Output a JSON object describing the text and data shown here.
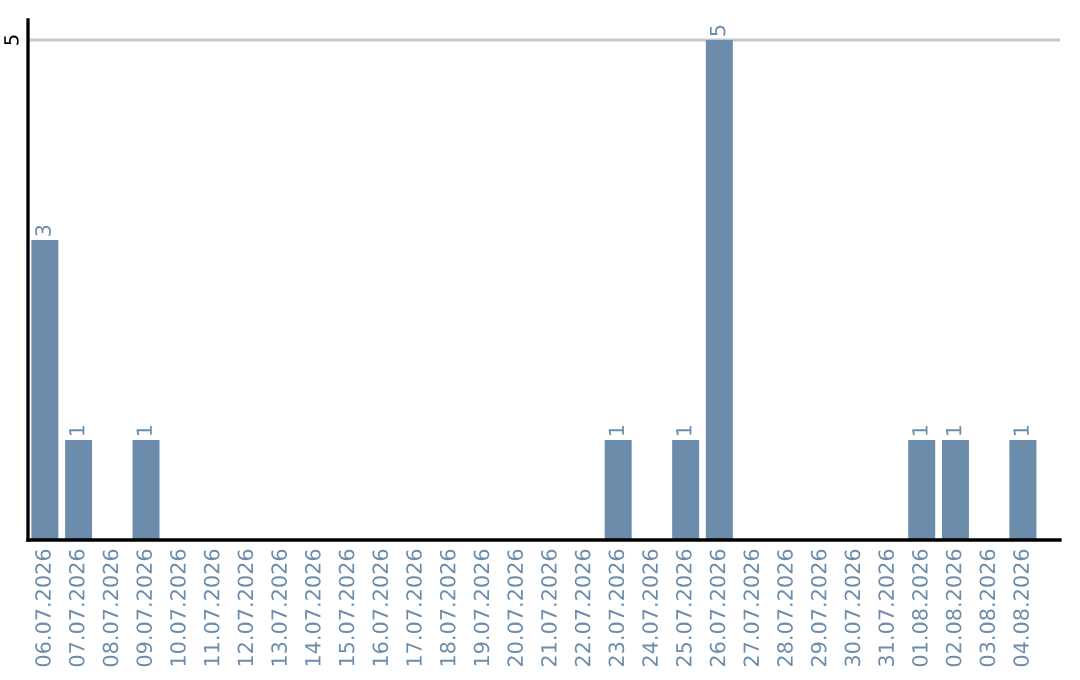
{
  "chart_data": {
    "type": "bar",
    "categories": [
      "06.07.2026",
      "07.07.2026",
      "08.07.2026",
      "09.07.2026",
      "10.07.2026",
      "11.07.2026",
      "12.07.2026",
      "13.07.2026",
      "14.07.2026",
      "15.07.2026",
      "16.07.2026",
      "17.07.2026",
      "18.07.2026",
      "19.07.2026",
      "20.07.2026",
      "21.07.2026",
      "22.07.2026",
      "23.07.2026",
      "24.07.2026",
      "25.07.2026",
      "26.07.2026",
      "27.07.2026",
      "28.07.2026",
      "29.07.2026",
      "30.07.2026",
      "31.07.2026",
      "01.08.2026",
      "02.08.2026",
      "03.08.2026",
      "04.08.2026"
    ],
    "values": [
      3,
      1,
      0,
      1,
      0,
      0,
      0,
      0,
      0,
      0,
      0,
      0,
      0,
      0,
      0,
      0,
      0,
      1,
      0,
      1,
      5,
      0,
      0,
      0,
      0,
      0,
      1,
      1,
      0,
      1
    ],
    "value_labels": [
      "3",
      "1",
      null,
      "1",
      null,
      null,
      null,
      null,
      null,
      null,
      null,
      null,
      null,
      null,
      null,
      null,
      null,
      "1",
      null,
      "1",
      "5",
      null,
      null,
      null,
      null,
      null,
      "1",
      "1",
      null,
      "1"
    ],
    "color": "#6b8cab",
    "ylim": [
      0,
      5.2
    ],
    "yticks": [
      5
    ],
    "grid": "y"
  }
}
